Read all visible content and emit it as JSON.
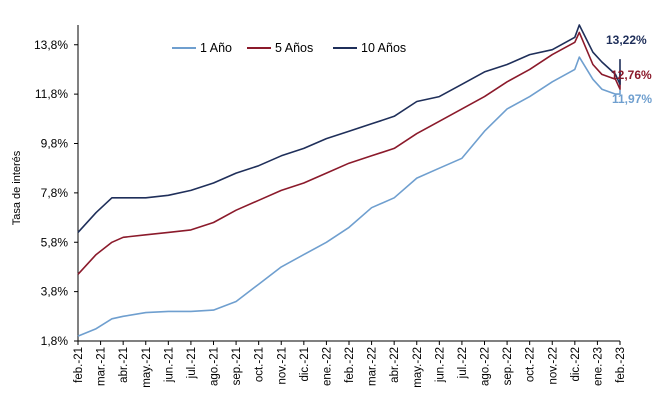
{
  "chart_data": {
    "type": "line",
    "ylabel": "Tasa de interés",
    "ylim": [
      1.8,
      14.6
    ],
    "y_ticks": [
      "1,8%",
      "3,8%",
      "5,8%",
      "7,8%",
      "9,8%",
      "11,8%",
      "13,8%"
    ],
    "y_tick_values": [
      1.8,
      3.8,
      5.8,
      7.8,
      9.8,
      11.8,
      13.8
    ],
    "x_ticks": [
      "feb.-21",
      "mar.-21",
      "abr.-21",
      "may.-21",
      "jun.-21",
      "jul.-21",
      "ago.-21",
      "sep.-21",
      "oct.-21",
      "nov.-21",
      "dic.-21",
      "ene.-22",
      "feb.-22",
      "mar.-22",
      "abr.-22",
      "may.-22",
      "jun.-22",
      "jul.-22",
      "ago.-22",
      "sep.-22",
      "oct.-22",
      "nov.-22",
      "dic.-22",
      "ene.-23",
      "feb.-23"
    ],
    "grid": false,
    "legend": "top-center",
    "series": [
      {
        "name": "1 Año",
        "color": "#6f9fcf",
        "end_label": "11,97%",
        "end_value": 11.97,
        "values": [
          2.0,
          2.3,
          2.7,
          2.8,
          2.95,
          3.0,
          3.0,
          3.05,
          3.4,
          4.1,
          4.8,
          5.3,
          5.8,
          6.4,
          7.2,
          7.6,
          8.4,
          8.8,
          9.2,
          10.3,
          11.2,
          11.7,
          12.3,
          12.8,
          13.3,
          12.4,
          12.0,
          11.8,
          11.8,
          11.97
        ],
        "x_positions": [
          0,
          0.8,
          1.5,
          2.0,
          3.0,
          4.0,
          5.0,
          6.0,
          7.0,
          8.0,
          9.0,
          10.0,
          11.0,
          12.0,
          13.0,
          14.0,
          15.0,
          16.0,
          17.0,
          18.0,
          19.0,
          20.0,
          21.0,
          22.0,
          22.2,
          22.8,
          23.2,
          23.8,
          24.0,
          24.0
        ]
      },
      {
        "name": "5 Años",
        "color": "#8b1a2b",
        "end_label": "12,76%",
        "end_value": 12.76,
        "values": [
          4.5,
          5.3,
          5.8,
          6.0,
          6.1,
          6.2,
          6.3,
          6.6,
          7.1,
          7.5,
          7.9,
          8.2,
          8.6,
          9.0,
          9.3,
          9.6,
          10.2,
          10.7,
          11.2,
          11.7,
          12.3,
          12.8,
          13.4,
          13.9,
          14.3,
          13.0,
          12.6,
          12.4,
          12.0,
          12.76
        ],
        "x_positions": [
          0,
          0.8,
          1.5,
          2.0,
          3.0,
          4.0,
          5.0,
          6.0,
          7.0,
          8.0,
          9.0,
          10.0,
          11.0,
          12.0,
          13.0,
          14.0,
          15.0,
          16.0,
          17.0,
          18.0,
          19.0,
          20.0,
          21.0,
          22.0,
          22.2,
          22.8,
          23.2,
          23.8,
          24.0,
          24.0
        ]
      },
      {
        "name": "10 Años",
        "color": "#1f2f5a",
        "end_label": "13,22%",
        "end_value": 13.22,
        "values": [
          6.2,
          7.0,
          7.6,
          7.6,
          7.6,
          7.7,
          7.9,
          8.2,
          8.6,
          8.9,
          9.3,
          9.6,
          10.0,
          10.3,
          10.6,
          10.9,
          11.5,
          11.7,
          12.2,
          12.7,
          13.0,
          13.4,
          13.6,
          14.1,
          14.6,
          13.5,
          13.1,
          12.6,
          12.2,
          13.22
        ],
        "x_positions": [
          0,
          0.8,
          1.5,
          2.0,
          3.0,
          4.0,
          5.0,
          6.0,
          7.0,
          8.0,
          9.0,
          10.0,
          11.0,
          12.0,
          13.0,
          14.0,
          15.0,
          16.0,
          17.0,
          18.0,
          19.0,
          20.0,
          21.0,
          22.0,
          22.2,
          22.8,
          23.2,
          23.8,
          24.0,
          24.0
        ]
      }
    ]
  }
}
